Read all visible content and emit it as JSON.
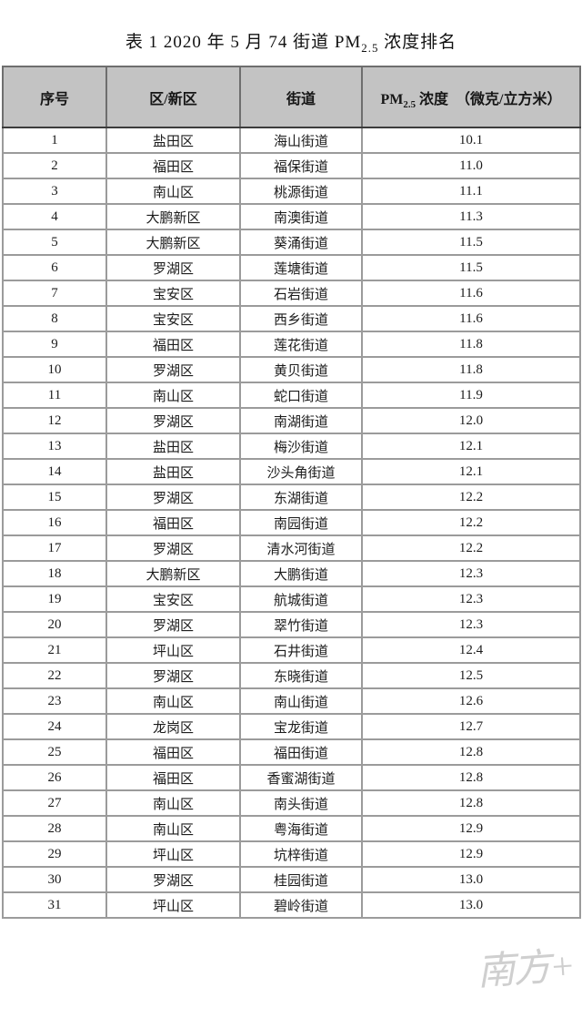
{
  "title": {
    "prefix": "表 1 2020 年 5 月 74 街道 PM",
    "subscript": "2.5",
    "suffix": " 浓度排名"
  },
  "table": {
    "headers": {
      "no": "序号",
      "district": "区/新区",
      "street": "街道",
      "conc_prefix": "PM",
      "conc_sub": "2.5",
      "conc_suffix": " 浓度　（微克/立方米）"
    },
    "rows": [
      {
        "no": "1",
        "district": "盐田区",
        "street": "海山街道",
        "value": "10.1"
      },
      {
        "no": "2",
        "district": "福田区",
        "street": "福保街道",
        "value": "11.0"
      },
      {
        "no": "3",
        "district": "南山区",
        "street": "桃源街道",
        "value": "11.1"
      },
      {
        "no": "4",
        "district": "大鹏新区",
        "street": "南澳街道",
        "value": "11.3"
      },
      {
        "no": "5",
        "district": "大鹏新区",
        "street": "葵涌街道",
        "value": "11.5"
      },
      {
        "no": "6",
        "district": "罗湖区",
        "street": "莲塘街道",
        "value": "11.5"
      },
      {
        "no": "7",
        "district": "宝安区",
        "street": "石岩街道",
        "value": "11.6"
      },
      {
        "no": "8",
        "district": "宝安区",
        "street": "西乡街道",
        "value": "11.6"
      },
      {
        "no": "9",
        "district": "福田区",
        "street": "莲花街道",
        "value": "11.8"
      },
      {
        "no": "10",
        "district": "罗湖区",
        "street": "黄贝街道",
        "value": "11.8"
      },
      {
        "no": "11",
        "district": "南山区",
        "street": "蛇口街道",
        "value": "11.9"
      },
      {
        "no": "12",
        "district": "罗湖区",
        "street": "南湖街道",
        "value": "12.0"
      },
      {
        "no": "13",
        "district": "盐田区",
        "street": "梅沙街道",
        "value": "12.1"
      },
      {
        "no": "14",
        "district": "盐田区",
        "street": "沙头角街道",
        "value": "12.1"
      },
      {
        "no": "15",
        "district": "罗湖区",
        "street": "东湖街道",
        "value": "12.2"
      },
      {
        "no": "16",
        "district": "福田区",
        "street": "南园街道",
        "value": "12.2"
      },
      {
        "no": "17",
        "district": "罗湖区",
        "street": "清水河街道",
        "value": "12.2"
      },
      {
        "no": "18",
        "district": "大鹏新区",
        "street": "大鹏街道",
        "value": "12.3"
      },
      {
        "no": "19",
        "district": "宝安区",
        "street": "航城街道",
        "value": "12.3"
      },
      {
        "no": "20",
        "district": "罗湖区",
        "street": "翠竹街道",
        "value": "12.3"
      },
      {
        "no": "21",
        "district": "坪山区",
        "street": "石井街道",
        "value": "12.4"
      },
      {
        "no": "22",
        "district": "罗湖区",
        "street": "东晓街道",
        "value": "12.5"
      },
      {
        "no": "23",
        "district": "南山区",
        "street": "南山街道",
        "value": "12.6"
      },
      {
        "no": "24",
        "district": "龙岗区",
        "street": "宝龙街道",
        "value": "12.7"
      },
      {
        "no": "25",
        "district": "福田区",
        "street": "福田街道",
        "value": "12.8"
      },
      {
        "no": "26",
        "district": "福田区",
        "street": "香蜜湖街道",
        "value": "12.8"
      },
      {
        "no": "27",
        "district": "南山区",
        "street": "南头街道",
        "value": "12.8"
      },
      {
        "no": "28",
        "district": "南山区",
        "street": "粤海街道",
        "value": "12.9"
      },
      {
        "no": "29",
        "district": "坪山区",
        "street": "坑梓街道",
        "value": "12.9"
      },
      {
        "no": "30",
        "district": "罗湖区",
        "street": "桂园街道",
        "value": "13.0"
      },
      {
        "no": "31",
        "district": "坪山区",
        "street": "碧岭街道",
        "value": "13.0"
      }
    ]
  },
  "watermark": {
    "text": "南方+"
  },
  "colors": {
    "header_bg": "#c3c3c3",
    "outer_border": "#3c3c3c",
    "inner_border": "#9b9b9b",
    "text": "#1c1c1c",
    "watermark": "#bfbfbf"
  }
}
